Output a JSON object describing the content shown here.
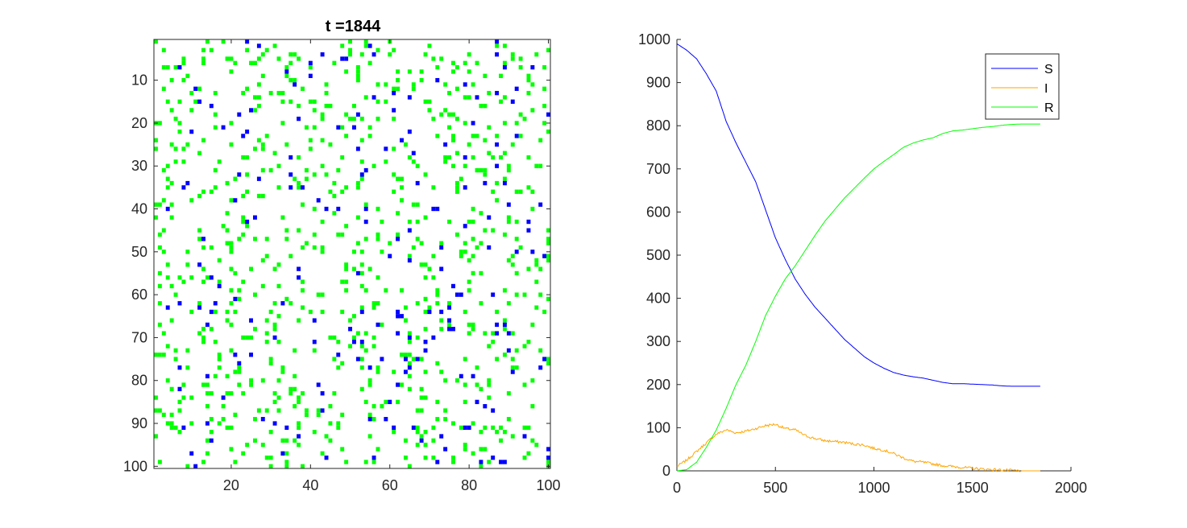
{
  "chart_data": [
    {
      "type": "heatmap",
      "title": "t =1844",
      "xlim": [
        0.5,
        100.5
      ],
      "ylim": [
        0.5,
        100.5
      ],
      "y_reversed": true,
      "x_ticks": [
        20,
        40,
        60,
        80,
        100
      ],
      "x_tick_labels": [
        "20",
        "40",
        "60",
        "80",
        "100"
      ],
      "y_ticks": [
        10,
        20,
        30,
        40,
        50,
        60,
        70,
        80,
        90,
        100
      ],
      "y_tick_labels": [
        "10",
        "20",
        "30",
        "40",
        "50",
        "60",
        "70",
        "80",
        "90",
        "100"
      ],
      "grid": false,
      "colors": {
        "susceptible": "#ffffff",
        "infected": "#0000ff",
        "recovered": "#00ff00"
      },
      "cell_states": {
        "infected_count": 196,
        "recovered_count": 804,
        "susceptible_count": 9000,
        "note": "approximate random layout of 100x100 lattice states"
      }
    },
    {
      "type": "line",
      "xlim": [
        0,
        2000
      ],
      "ylim": [
        0,
        1000
      ],
      "x_ticks": [
        0,
        500,
        1000,
        1500,
        2000
      ],
      "x_tick_labels": [
        "0",
        "500",
        "1000",
        "1500",
        "2000"
      ],
      "y_ticks": [
        0,
        100,
        200,
        300,
        400,
        500,
        600,
        700,
        800,
        900,
        1000
      ],
      "y_tick_labels": [
        "0",
        "100",
        "200",
        "300",
        "400",
        "500",
        "600",
        "700",
        "800",
        "900",
        "1000"
      ],
      "grid": false,
      "legend_position": "top-right",
      "series": [
        {
          "name": "S",
          "color": "#0000ff",
          "x": [
            0,
            50,
            100,
            150,
            200,
            250,
            300,
            350,
            400,
            450,
            500,
            550,
            600,
            650,
            700,
            750,
            800,
            850,
            900,
            950,
            1000,
            1050,
            1100,
            1150,
            1200,
            1250,
            1300,
            1350,
            1400,
            1450,
            1500,
            1550,
            1600,
            1650,
            1700,
            1750,
            1800,
            1844
          ],
          "values": [
            990,
            975,
            955,
            920,
            880,
            810,
            760,
            715,
            670,
            605,
            540,
            490,
            445,
            410,
            380,
            355,
            330,
            305,
            285,
            265,
            250,
            238,
            228,
            222,
            218,
            215,
            210,
            205,
            202,
            202,
            201,
            200,
            199,
            197,
            196,
            196,
            196,
            196
          ]
        },
        {
          "name": "I",
          "color": "#ffa500",
          "x": [
            0,
            50,
            100,
            150,
            200,
            250,
            300,
            350,
            400,
            450,
            500,
            550,
            600,
            650,
            700,
            750,
            800,
            850,
            900,
            950,
            1000,
            1050,
            1100,
            1150,
            1200,
            1250,
            1300,
            1350,
            1400,
            1450,
            1500,
            1550,
            1600,
            1650,
            1700,
            1750,
            1800,
            1844
          ],
          "values": [
            10,
            25,
            45,
            65,
            85,
            95,
            88,
            92,
            98,
            105,
            108,
            98,
            95,
            82,
            75,
            70,
            68,
            66,
            62,
            60,
            52,
            48,
            40,
            30,
            22,
            20,
            16,
            12,
            10,
            8,
            6,
            4,
            3,
            2,
            1,
            0,
            0,
            0
          ]
        },
        {
          "name": "R",
          "color": "#00ff00",
          "x": [
            0,
            50,
            100,
            150,
            200,
            250,
            300,
            350,
            400,
            450,
            500,
            550,
            600,
            650,
            700,
            750,
            800,
            850,
            900,
            950,
            1000,
            1050,
            1100,
            1150,
            1200,
            1250,
            1300,
            1350,
            1400,
            1450,
            1500,
            1550,
            1600,
            1650,
            1700,
            1750,
            1800,
            1844
          ],
          "values": [
            0,
            3,
            20,
            55,
            95,
            145,
            200,
            245,
            300,
            360,
            405,
            445,
            475,
            510,
            545,
            578,
            605,
            632,
            655,
            678,
            700,
            717,
            733,
            750,
            760,
            767,
            772,
            782,
            788,
            790,
            793,
            796,
            798,
            801,
            803,
            804,
            804,
            804
          ]
        }
      ]
    }
  ]
}
